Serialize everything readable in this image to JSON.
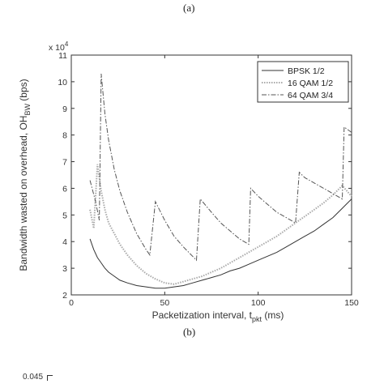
{
  "top_label": "(a)",
  "bottom_label": "(b)",
  "next_chart_fragment": "0.045",
  "chart_data": {
    "type": "line",
    "title": "",
    "xlabel": "Packetization interval, t",
    "xlabel_sub": "pkt",
    "xlabel_unit": " (ms)",
    "ylabel": "Bandwidth wasted on overhead, OH",
    "ylabel_sub": "BW",
    "ylabel_unit": " (bps)",
    "y_multiplier": "x 10",
    "y_multiplier_exp": "4",
    "xlim": [
      0,
      150
    ],
    "ylim": [
      2,
      11
    ],
    "xticks": [
      0,
      50,
      100,
      150
    ],
    "yticks": [
      2,
      3,
      4,
      5,
      6,
      7,
      8,
      9,
      10,
      11
    ],
    "grid": false,
    "legend_position": "top-right",
    "series": [
      {
        "name": "BPSK 1/2",
        "color": "#333333",
        "style": "solid",
        "x": [
          10,
          12,
          14,
          16,
          18,
          20,
          23,
          26,
          30,
          35,
          40,
          45,
          50,
          55,
          60,
          65,
          70,
          75,
          80,
          85,
          90,
          95,
          100,
          105,
          110,
          115,
          120,
          125,
          130,
          135,
          140,
          145,
          150
        ],
        "y": [
          4.1,
          3.7,
          3.4,
          3.2,
          3.0,
          2.85,
          2.7,
          2.55,
          2.45,
          2.35,
          2.3,
          2.25,
          2.25,
          2.3,
          2.35,
          2.45,
          2.55,
          2.65,
          2.75,
          2.9,
          3.0,
          3.15,
          3.3,
          3.45,
          3.6,
          3.8,
          4.0,
          4.2,
          4.4,
          4.65,
          4.9,
          5.25,
          5.6
        ]
      },
      {
        "name": "16 QAM 1/2",
        "color": "#aaaaaa",
        "style": "dotted",
        "x": [
          10,
          12,
          14,
          16,
          18,
          20,
          23,
          26,
          30,
          35,
          40,
          45,
          50,
          55,
          60,
          65,
          70,
          75,
          80,
          85,
          90,
          95,
          100,
          105,
          110,
          115,
          120,
          125,
          130,
          135,
          140,
          145,
          150
        ],
        "y": [
          5.2,
          4.5,
          6.9,
          5.9,
          5.2,
          4.7,
          4.3,
          3.9,
          3.5,
          3.1,
          2.8,
          2.6,
          2.45,
          2.4,
          2.5,
          2.6,
          2.7,
          2.85,
          3.0,
          3.2,
          3.4,
          3.6,
          3.8,
          4.0,
          4.2,
          4.45,
          4.7,
          4.95,
          5.2,
          5.45,
          5.75,
          6.1,
          5.7
        ]
      },
      {
        "name": "64 QAM 3/4",
        "color": "#555555",
        "style": "dashdot",
        "x": [
          10,
          13,
          15,
          16,
          18,
          20,
          23,
          26,
          30,
          35,
          40,
          42,
          45,
          50,
          55,
          60,
          67,
          69,
          75,
          80,
          85,
          90,
          95,
          96,
          100,
          105,
          110,
          115,
          120,
          122,
          125,
          130,
          135,
          140,
          145,
          146,
          150
        ],
        "y": [
          6.3,
          5.5,
          4.8,
          10.3,
          8.8,
          7.8,
          6.7,
          5.9,
          5.1,
          4.3,
          3.7,
          3.5,
          5.5,
          4.8,
          4.2,
          3.8,
          3.3,
          5.6,
          5.1,
          4.7,
          4.4,
          4.1,
          3.9,
          6.0,
          5.7,
          5.4,
          5.1,
          4.9,
          4.7,
          6.6,
          6.4,
          6.2,
          6.0,
          5.8,
          5.6,
          8.3,
          8.1
        ]
      }
    ]
  }
}
